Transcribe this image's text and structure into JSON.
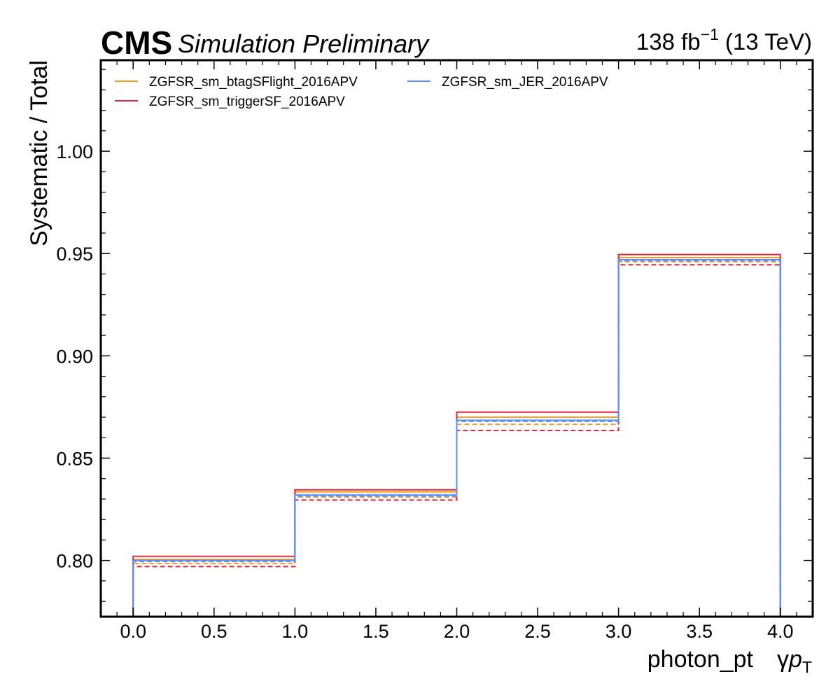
{
  "header": {
    "cms_label": "CMS",
    "status_label": "Simulation Preliminary",
    "lumi_value": "138 fb",
    "lumi_exponent": "−1",
    "energy_label": "(13 TeV)"
  },
  "chart_data": {
    "type": "line",
    "drawstyle": "steps",
    "xlabel": "photon_pt",
    "xlabel_suffix_symbol": "γ",
    "xlabel_suffix_var": "p",
    "xlabel_suffix_sub": "T",
    "ylabel": "Systematic / Total",
    "xlim": [
      -0.2,
      4.2
    ],
    "ylim": [
      0.7725,
      1.0445
    ],
    "grid": false,
    "legend_placement": "top-left",
    "x_ticks": [
      0.0,
      0.5,
      1.0,
      1.5,
      2.0,
      2.5,
      3.0,
      3.5,
      4.0
    ],
    "x_tick_labels": [
      "0.0",
      "0.5",
      "1.0",
      "1.5",
      "2.0",
      "2.5",
      "3.0",
      "3.5",
      "4.0"
    ],
    "y_ticks": [
      0.8,
      0.85,
      0.9,
      0.95,
      1.0
    ],
    "y_tick_labels": [
      "0.80",
      "0.85",
      "0.90",
      "0.95",
      "1.00"
    ],
    "bin_edges": [
      0,
      1,
      2,
      3,
      4
    ],
    "series": [
      {
        "name": "ZGFSR_sm_btagSFlight_2016APV",
        "color": "#f89c20",
        "up": [
          0.8005,
          0.8335,
          0.87,
          0.948
        ],
        "down": [
          0.7985,
          0.831,
          0.8665,
          0.946
        ]
      },
      {
        "name": "ZGFSR_sm_triggerSF_2016APV",
        "color": "#e42536",
        "up": [
          0.802,
          0.8345,
          0.8725,
          0.9495
        ],
        "down": [
          0.797,
          0.8295,
          0.8635,
          0.9445
        ]
      },
      {
        "name": "ZGFSR_sm_JER_2016APV",
        "color": "#5790fc",
        "up": [
          0.8,
          0.832,
          0.8685,
          0.947
        ],
        "down": [
          0.7995,
          0.8315,
          0.868,
          0.9465
        ]
      }
    ]
  }
}
